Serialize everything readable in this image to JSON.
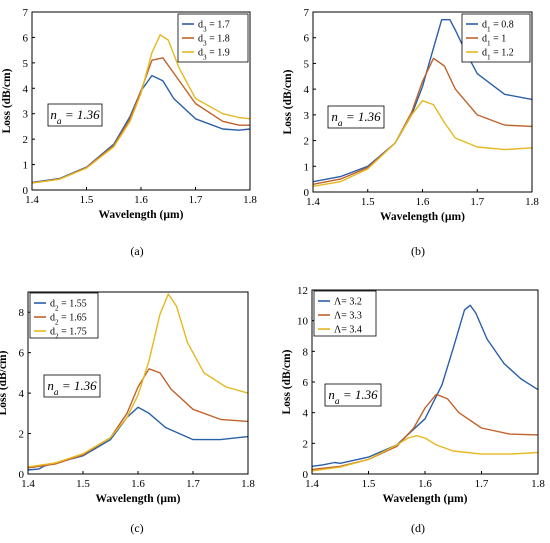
{
  "chart_data": [
    {
      "type": "line",
      "panel_label": "(a)",
      "xlabel": "Wavelength (µm)",
      "ylabel": "Loss (dB/cm)",
      "xlim": [
        1.4,
        1.8
      ],
      "ylim": [
        0,
        7
      ],
      "xticks": [
        "1.4",
        "1.5",
        "1.6",
        "1.7",
        "1.8"
      ],
      "yticks": [
        "0",
        "1",
        "2",
        "3",
        "4",
        "5",
        "6",
        "7"
      ],
      "annotation": {
        "pre": "n",
        "sub": "a",
        "post": " = 1.36"
      },
      "legend_position": "top-right",
      "series": [
        {
          "name": {
            "pre": "d",
            "sub": "3",
            "post": " = 1.7"
          },
          "color": "#2b5fa8",
          "x": [
            1.4,
            1.45,
            1.5,
            1.55,
            1.58,
            1.6,
            1.62,
            1.64,
            1.66,
            1.7,
            1.75,
            1.78,
            1.8
          ],
          "y": [
            0.3,
            0.45,
            0.9,
            1.8,
            2.9,
            3.9,
            4.5,
            4.3,
            3.6,
            2.8,
            2.4,
            2.35,
            2.4
          ]
        },
        {
          "name": {
            "pre": "d",
            "sub": "3",
            "post": " = 1.8"
          },
          "color": "#c0622b",
          "x": [
            1.4,
            1.45,
            1.5,
            1.55,
            1.58,
            1.6,
            1.62,
            1.64,
            1.66,
            1.7,
            1.75,
            1.78,
            1.8
          ],
          "y": [
            0.28,
            0.43,
            0.88,
            1.75,
            2.8,
            3.9,
            5.1,
            5.2,
            4.6,
            3.4,
            2.7,
            2.55,
            2.55
          ]
        },
        {
          "name": {
            "pre": "d",
            "sub": "3",
            "post": " = 1.9"
          },
          "color": "#e6b820",
          "x": [
            1.4,
            1.45,
            1.5,
            1.55,
            1.58,
            1.6,
            1.62,
            1.635,
            1.65,
            1.67,
            1.7,
            1.75,
            1.78,
            1.8
          ],
          "y": [
            0.27,
            0.42,
            0.86,
            1.7,
            2.7,
            3.8,
            5.4,
            6.1,
            5.9,
            4.8,
            3.6,
            3.0,
            2.85,
            2.8
          ]
        }
      ]
    },
    {
      "type": "line",
      "panel_label": "(b)",
      "xlabel": "Wavelength (µm)",
      "ylabel": "Loss (dB/cm)",
      "xlim": [
        1.4,
        1.8
      ],
      "ylim": [
        0,
        7
      ],
      "xticks": [
        "1.4",
        "1.5",
        "1.6",
        "1.7",
        "1.8"
      ],
      "yticks": [
        "0",
        "1",
        "2",
        "3",
        "4",
        "5",
        "6",
        "7"
      ],
      "annotation": {
        "pre": "n",
        "sub": "a",
        "post": " = 1.36"
      },
      "legend_position": "top-right",
      "series": [
        {
          "name": {
            "pre": "d",
            "sub": "1",
            "post": " = 0.8"
          },
          "color": "#2b5fa8",
          "x": [
            1.4,
            1.45,
            1.5,
            1.55,
            1.58,
            1.6,
            1.62,
            1.635,
            1.65,
            1.66,
            1.68,
            1.7,
            1.75,
            1.8
          ],
          "y": [
            0.4,
            0.6,
            1.0,
            1.9,
            3.0,
            4.1,
            5.6,
            6.7,
            6.7,
            6.3,
            5.4,
            4.6,
            3.8,
            3.6
          ]
        },
        {
          "name": {
            "pre": "d",
            "sub": "1",
            "post": " = 1"
          },
          "color": "#c0622b",
          "x": [
            1.4,
            1.45,
            1.5,
            1.55,
            1.58,
            1.6,
            1.62,
            1.64,
            1.66,
            1.7,
            1.75,
            1.8
          ],
          "y": [
            0.3,
            0.5,
            0.95,
            1.9,
            3.1,
            4.3,
            5.2,
            4.9,
            4.0,
            3.0,
            2.6,
            2.55
          ]
        },
        {
          "name": {
            "pre": "d",
            "sub": "1",
            "post": " = 1.2"
          },
          "color": "#e6b820",
          "x": [
            1.4,
            1.45,
            1.5,
            1.55,
            1.58,
            1.6,
            1.62,
            1.64,
            1.66,
            1.7,
            1.75,
            1.8
          ],
          "y": [
            0.22,
            0.4,
            0.9,
            1.9,
            3.0,
            3.55,
            3.4,
            2.7,
            2.1,
            1.75,
            1.65,
            1.72
          ]
        }
      ]
    },
    {
      "type": "line",
      "panel_label": "(c)",
      "xlabel": "Wavelength (µm)",
      "ylabel": "Loss (dB/cm)",
      "xlim": [
        1.4,
        1.8
      ],
      "ylim": [
        0,
        9
      ],
      "xticks": [
        "1.4",
        "1.5",
        "1.6",
        "1.7",
        "1.8"
      ],
      "yticks": [
        "0",
        "2",
        "4",
        "6",
        "8"
      ],
      "ytick_values": [
        0,
        2,
        4,
        6,
        8
      ],
      "annotation": {
        "pre": "n",
        "sub": "a",
        "post": " = 1.36"
      },
      "legend_position": "top-left",
      "series": [
        {
          "name": {
            "pre": "d",
            "sub": "2",
            "post": " = 1.55"
          },
          "color": "#2b5fa8",
          "x": [
            1.4,
            1.42,
            1.43,
            1.45,
            1.5,
            1.55,
            1.58,
            1.6,
            1.62,
            1.65,
            1.7,
            1.75,
            1.8
          ],
          "y": [
            0.2,
            0.25,
            0.4,
            0.55,
            0.9,
            1.7,
            2.8,
            3.3,
            3.0,
            2.3,
            1.7,
            1.7,
            1.85
          ]
        },
        {
          "name": {
            "pre": "d",
            "sub": "2",
            "post": " = 1.65"
          },
          "color": "#c0622b",
          "x": [
            1.4,
            1.45,
            1.5,
            1.55,
            1.58,
            1.6,
            1.62,
            1.64,
            1.66,
            1.7,
            1.75,
            1.8
          ],
          "y": [
            0.3,
            0.5,
            0.95,
            1.8,
            3.0,
            4.3,
            5.2,
            5.0,
            4.2,
            3.2,
            2.7,
            2.6
          ]
        },
        {
          "name": {
            "pre": "d",
            "sub": "2",
            "post": " = 1.75"
          },
          "color": "#e6b820",
          "x": [
            1.4,
            1.45,
            1.5,
            1.55,
            1.58,
            1.6,
            1.62,
            1.64,
            1.655,
            1.67,
            1.69,
            1.72,
            1.76,
            1.8
          ],
          "y": [
            0.35,
            0.55,
            1.0,
            1.8,
            2.8,
            3.9,
            5.6,
            7.9,
            8.9,
            8.3,
            6.5,
            5.0,
            4.3,
            4.0
          ]
        }
      ]
    },
    {
      "type": "line",
      "panel_label": "(d)",
      "xlabel": "Wavelength (µm)",
      "ylabel": "Loss (dB/cm)",
      "xlim": [
        1.4,
        1.8
      ],
      "ylim": [
        0,
        12
      ],
      "xticks": [
        "1.4",
        "1.5",
        "1.6",
        "1.7",
        "1.8"
      ],
      "yticks": [
        "0",
        "2",
        "4",
        "6",
        "8",
        "10",
        "12"
      ],
      "ytick_values": [
        0,
        2,
        4,
        6,
        8,
        10,
        12
      ],
      "annotation": {
        "pre": "n",
        "sub": "a",
        "post": " = 1.36"
      },
      "legend_position": "top-left",
      "series": [
        {
          "name": {
            "pre": "Λ",
            "sub": "",
            "post": "= 3.2"
          },
          "color": "#2b5fa8",
          "x": [
            1.4,
            1.42,
            1.44,
            1.45,
            1.5,
            1.55,
            1.6,
            1.63,
            1.65,
            1.67,
            1.68,
            1.69,
            1.71,
            1.74,
            1.77,
            1.8
          ],
          "y": [
            0.5,
            0.6,
            0.75,
            0.7,
            1.1,
            1.9,
            3.6,
            5.8,
            8.2,
            10.7,
            11.0,
            10.5,
            8.8,
            7.2,
            6.2,
            5.5
          ]
        },
        {
          "name": {
            "pre": "Λ",
            "sub": "",
            "post": "= 3.3"
          },
          "color": "#c0622b",
          "x": [
            1.4,
            1.45,
            1.5,
            1.55,
            1.58,
            1.6,
            1.62,
            1.64,
            1.66,
            1.7,
            1.75,
            1.8
          ],
          "y": [
            0.3,
            0.5,
            0.95,
            1.8,
            3.0,
            4.3,
            5.2,
            4.9,
            4.0,
            3.0,
            2.6,
            2.55
          ]
        },
        {
          "name": {
            "pre": "Λ",
            "sub": "",
            "post": "= 3.4"
          },
          "color": "#e6b820",
          "x": [
            1.4,
            1.45,
            1.5,
            1.55,
            1.57,
            1.585,
            1.6,
            1.62,
            1.65,
            1.7,
            1.75,
            1.8
          ],
          "y": [
            0.2,
            0.45,
            0.95,
            1.9,
            2.35,
            2.5,
            2.35,
            1.9,
            1.5,
            1.3,
            1.3,
            1.4
          ]
        }
      ]
    }
  ]
}
